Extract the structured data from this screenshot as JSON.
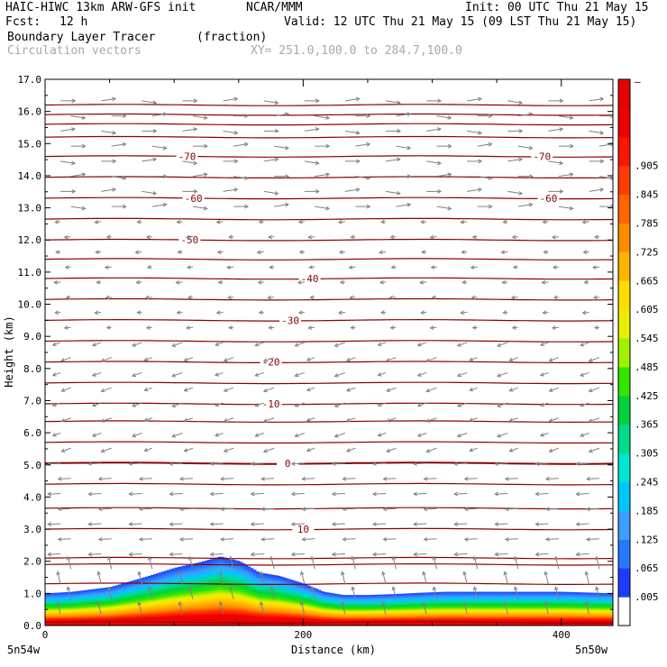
{
  "header": {
    "model_title": "HAIC-HIWC 13km ARW-GFS init",
    "org": "NCAR/MMM",
    "init": "Init: 00 UTC Thu 21 May 15",
    "fcst_label": "Fcst:",
    "fcst_value": "12 h",
    "valid": "Valid: 12 UTC Thu 21 May 15 (09 LST Thu 21 May 15)",
    "field_name": "Boundary Layer Tracer",
    "field_units": "(fraction)",
    "vector_name": "Circulation vectors",
    "cross_section": "XY= 251.0,100.0 to 284.7,100.0"
  },
  "chart_data": {
    "type": "cross-section",
    "xlabel": "Distance (km)",
    "ylabel": "Height (km)",
    "xlim": [
      0,
      440
    ],
    "ylim": [
      0,
      17
    ],
    "x_ticks": [
      0,
      200,
      400
    ],
    "x_tick_labels": [
      "0",
      "200",
      "400"
    ],
    "y_ticks": [
      0,
      1,
      2,
      3,
      4,
      5,
      6,
      7,
      8,
      9,
      10,
      11,
      12,
      13,
      14,
      15,
      16,
      17
    ],
    "y_tick_labels": [
      "0.0",
      "1.0",
      "2.0",
      "3.0",
      "4.0",
      "5.0",
      "6.0",
      "7.0",
      "8.0",
      "9.0",
      "10.0",
      "11.0",
      "12.0",
      "13.0",
      "14.0",
      "15.0",
      "16.0",
      "17.0"
    ],
    "endpoint_left": "5n54w",
    "endpoint_right": "5n50w",
    "tracer_top_km": {
      "x": [
        0,
        20,
        50,
        80,
        100,
        120,
        135,
        150,
        165,
        180,
        200,
        215,
        230,
        250,
        270,
        290,
        310,
        340,
        370,
        400,
        440
      ],
      "top": [
        1.0,
        1.05,
        1.2,
        1.55,
        1.8,
        1.98,
        2.15,
        2.0,
        1.65,
        1.55,
        1.3,
        1.05,
        0.95,
        0.95,
        0.98,
        1.02,
        1.05,
        1.05,
        1.05,
        1.05,
        1.0
      ]
    },
    "temperature_contours": [
      {
        "label": "-70",
        "height_km": 14.6,
        "label_x_km": [
          110,
          385
        ]
      },
      {
        "label": "-60",
        "height_km": 13.3,
        "label_x_km": [
          115,
          390
        ]
      },
      {
        "label": "-50",
        "height_km": 12.0,
        "label_x_km": [
          112
        ]
      },
      {
        "label": "-40",
        "height_km": 10.8,
        "label_x_km": [
          205
        ]
      },
      {
        "label": "-30",
        "height_km": 9.5,
        "label_x_km": [
          190
        ]
      },
      {
        "label": "-20",
        "height_km": 8.2,
        "label_x_km": [
          175
        ]
      },
      {
        "label": "-10",
        "height_km": 6.9,
        "label_x_km": [
          175
        ]
      },
      {
        "label": "0",
        "height_km": 5.05,
        "label_x_km": [
          188
        ]
      },
      {
        "label": "10",
        "height_km": 3.0,
        "label_x_km": [
          200
        ]
      }
    ],
    "unlabeled_contour_heights_km": [
      0.1,
      1.3,
      1.9,
      2.1,
      3.65,
      4.4,
      5.7,
      6.35,
      7.55,
      8.85,
      10.15,
      11.4,
      12.65,
      13.95,
      15.2,
      15.6,
      15.9,
      16.2
    ],
    "colorbar": {
      "labels": [
        ".005",
        ".065",
        ".125",
        ".185",
        ".245",
        ".305",
        ".365",
        ".425",
        ".485",
        ".545",
        ".605",
        ".665",
        ".725",
        ".785",
        ".845",
        ".905"
      ],
      "top_label": "–",
      "colors": [
        "#ffffff",
        "#1e3cff",
        "#2878ff",
        "#3ca0ff",
        "#00c8ff",
        "#00e6d2",
        "#00dc8c",
        "#00d23c",
        "#32e600",
        "#a0f000",
        "#e6f000",
        "#ffdc00",
        "#ffb400",
        "#ff8c00",
        "#ff6400",
        "#ff3c00",
        "#ff1400",
        "#f00000",
        "#e60000"
      ]
    },
    "colors": {
      "contour": "#8c0000",
      "vector": "#808080",
      "axis": "#000000"
    }
  }
}
